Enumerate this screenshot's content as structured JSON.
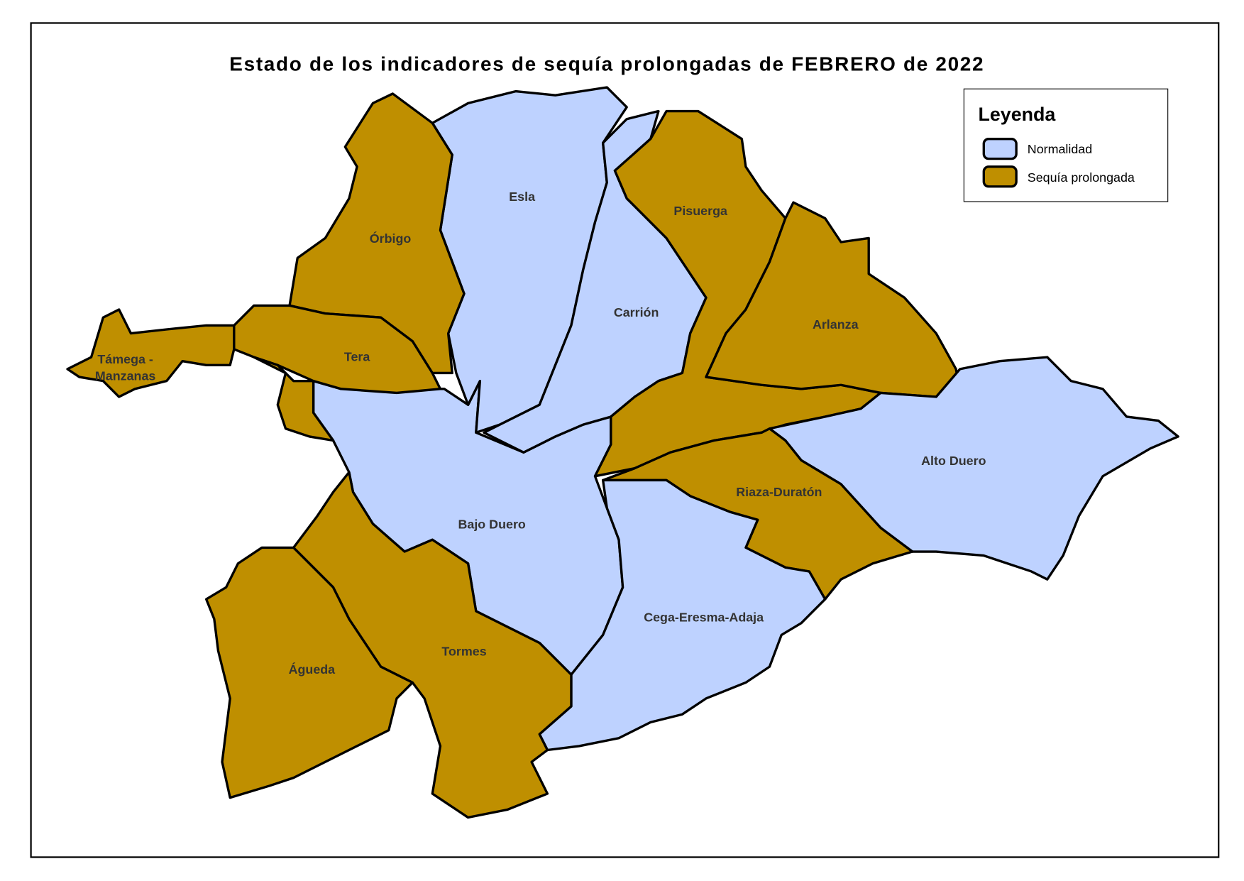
{
  "title": "Estado de los indicadores de sequía prolongadas de FEBRERO de 2022",
  "colors": {
    "normalidad": "#bed2ff",
    "sequia": "#bf8f00",
    "outline": "#000000"
  },
  "legend": {
    "title": "Leyenda",
    "items": [
      {
        "label": "Normalidad",
        "status": "normalidad"
      },
      {
        "label": "Sequía prolongada",
        "status": "sequia"
      }
    ]
  },
  "regions": [
    {
      "id": "bajo-duero",
      "label": "Bajo Duero",
      "status": "normalidad"
    },
    {
      "id": "esla",
      "label": "Esla",
      "status": "normalidad"
    },
    {
      "id": "carrion",
      "label": "Carrión",
      "status": "normalidad"
    },
    {
      "id": "orbigo",
      "label": "Órbigo",
      "status": "sequia"
    },
    {
      "id": "pisuerga",
      "label": "Pisuerga",
      "status": "sequia"
    },
    {
      "id": "arlanza",
      "label": "Arlanza",
      "status": "sequia"
    },
    {
      "id": "alto-duero",
      "label": "Alto Duero",
      "status": "normalidad"
    },
    {
      "id": "riaza-duraton",
      "label": "Riaza-Duratón",
      "status": "sequia"
    },
    {
      "id": "cega-eresma-adaja",
      "label": "Cega-Eresma-Adaja",
      "status": "normalidad"
    },
    {
      "id": "tera",
      "label": "Tera",
      "status": "sequia"
    },
    {
      "id": "tamega-manzanas",
      "label": "Támega - Manzanas",
      "status": "sequia"
    },
    {
      "id": "tormes",
      "label": "Tormes",
      "status": "sequia"
    },
    {
      "id": "agueda",
      "label": "Águeda",
      "status": "sequia"
    }
  ]
}
